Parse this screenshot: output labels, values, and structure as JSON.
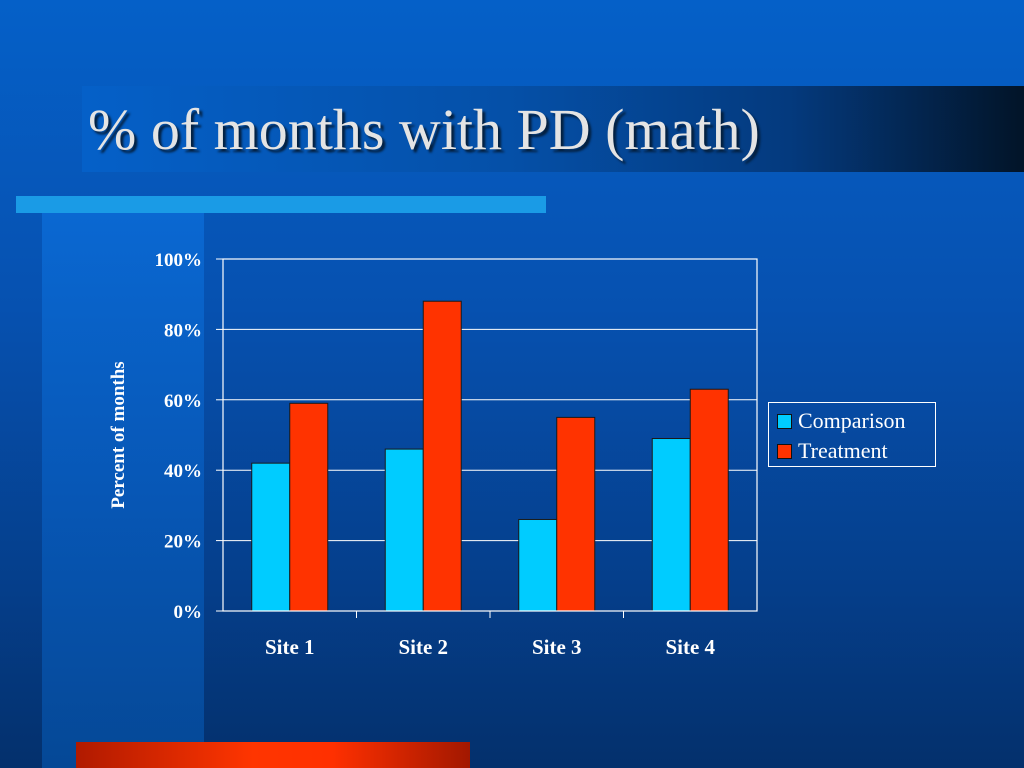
{
  "slide": {
    "title": "% of months with PD (math)"
  },
  "chart_data": {
    "type": "bar",
    "categories": [
      "Site 1",
      "Site 2",
      "Site 3",
      "Site 4"
    ],
    "series": [
      {
        "name": "Comparison",
        "color": "#00ccff",
        "values": [
          42,
          46,
          26,
          49
        ]
      },
      {
        "name": "Treatment",
        "color": "#ff3300",
        "values": [
          59,
          88,
          55,
          63
        ]
      }
    ],
    "ylabel": "Percent of months",
    "ylim": [
      0,
      100
    ],
    "yticks": [
      "0%",
      "20%",
      "40%",
      "60%",
      "80%",
      "100%"
    ],
    "grid": true,
    "legend_position": "right"
  }
}
